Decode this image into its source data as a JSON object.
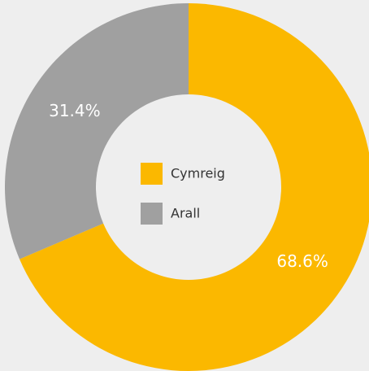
{
  "chart_data": {
    "type": "donut",
    "categories": [
      "Cymreig",
      "Arall"
    ],
    "values": [
      68.6,
      31.4
    ],
    "value_labels": [
      "68.6%",
      "31.4%"
    ],
    "colors": [
      "#fbb800",
      "#a0a0a0"
    ]
  }
}
